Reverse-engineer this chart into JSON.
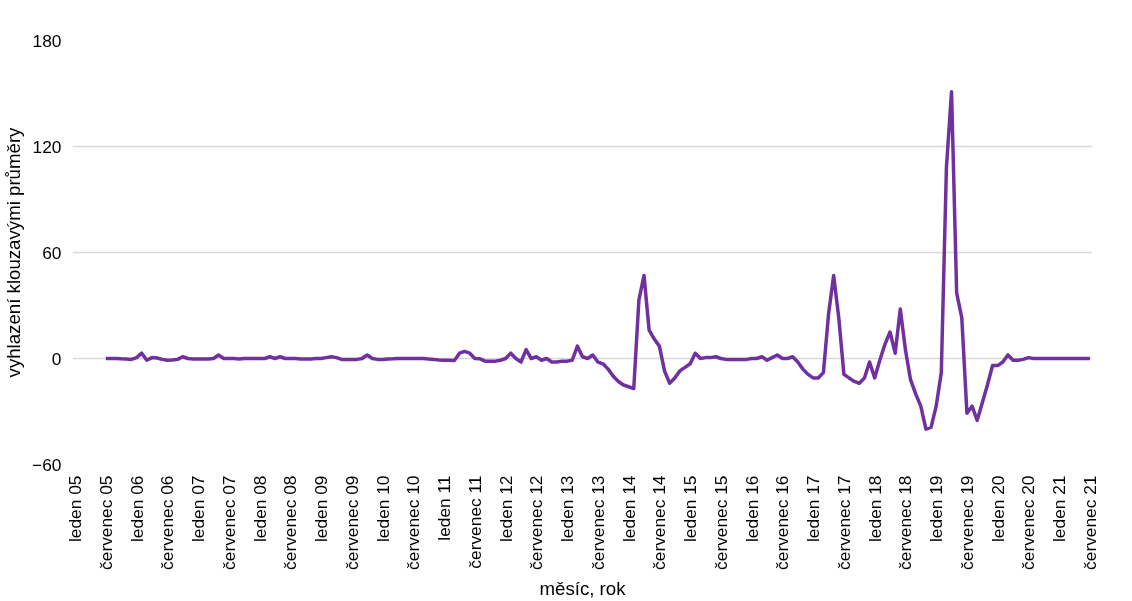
{
  "chart_data": {
    "type": "line",
    "xlabel": "měsíc, rok",
    "ylabel": "vyhlazení klouzavými průměry",
    "categories": [
      "leden 05",
      null,
      null,
      null,
      null,
      null,
      "červenec 05",
      null,
      null,
      null,
      null,
      null,
      "leden 06",
      null,
      null,
      null,
      null,
      null,
      "červenec 06",
      null,
      null,
      null,
      null,
      null,
      "leden 07",
      null,
      null,
      null,
      null,
      null,
      "červenec 07",
      null,
      null,
      null,
      null,
      null,
      "leden 08",
      null,
      null,
      null,
      null,
      null,
      "červenec 08",
      null,
      null,
      null,
      null,
      null,
      "leden 09",
      null,
      null,
      null,
      null,
      null,
      "červenec 09",
      null,
      null,
      null,
      null,
      null,
      "leden 10",
      null,
      null,
      null,
      null,
      null,
      "červenec 10",
      null,
      null,
      null,
      null,
      null,
      "leden 11",
      null,
      null,
      null,
      null,
      null,
      "červenec 11",
      null,
      null,
      null,
      null,
      null,
      "leden 12",
      null,
      null,
      null,
      null,
      null,
      "červenec 12",
      null,
      null,
      null,
      null,
      null,
      "leden 13",
      null,
      null,
      null,
      null,
      null,
      "červenec 13",
      null,
      null,
      null,
      null,
      null,
      "leden 14",
      null,
      null,
      null,
      null,
      null,
      "červenec 14",
      null,
      null,
      null,
      null,
      null,
      "leden 15",
      null,
      null,
      null,
      null,
      null,
      "červenec 15",
      null,
      null,
      null,
      null,
      null,
      "leden 16",
      null,
      null,
      null,
      null,
      null,
      "červenec 16",
      null,
      null,
      null,
      null,
      null,
      "leden 17",
      null,
      null,
      null,
      null,
      null,
      "červenec 17",
      null,
      null,
      null,
      null,
      null,
      "leden 18",
      null,
      null,
      null,
      null,
      null,
      "červenec 18",
      null,
      null,
      null,
      null,
      null,
      "leden 19",
      null,
      null,
      null,
      null,
      null,
      "červenec 19",
      null,
      null,
      null,
      null,
      null,
      "leden 20",
      null,
      null,
      null,
      null,
      null,
      "červenec 20",
      null,
      null,
      null,
      null,
      null,
      "leden 21",
      null,
      null,
      null,
      null,
      null,
      "červenec 21"
    ],
    "series": [
      {
        "color": "#7030a0",
        "values": [
          null,
          null,
          null,
          null,
          null,
          null,
          0,
          0,
          0,
          -0.2,
          -0.3,
          -0.5,
          0.5,
          3,
          -1,
          0.5,
          0.3,
          -0.5,
          -1,
          -0.8,
          -0.5,
          1,
          0,
          -0.3,
          -0.3,
          -0.3,
          -0.3,
          0,
          2,
          0,
          0,
          0,
          -0.3,
          0,
          0,
          0,
          0,
          0,
          1,
          0,
          1,
          0,
          0,
          0,
          -0.3,
          -0.3,
          -0.3,
          0,
          0,
          0.5,
          1,
          0.5,
          -0.5,
          -0.5,
          -0.5,
          -0.5,
          0,
          2,
          0,
          -0.5,
          -0.5,
          -0.3,
          -0.2,
          0,
          0,
          0,
          0,
          0,
          0,
          -0.3,
          -0.5,
          -0.8,
          -1,
          -1,
          -1.2,
          3,
          4,
          3,
          0,
          -0.2,
          -1.5,
          -1.5,
          -1.5,
          -1,
          0,
          3,
          0,
          -2,
          5,
          0,
          1,
          -1,
          0,
          -2,
          -2,
          -1.5,
          -1.5,
          -1,
          7,
          1,
          0,
          2,
          -2,
          -3,
          -6,
          -10,
          -13,
          -15,
          -16,
          -17,
          33,
          47,
          16,
          11,
          7,
          -7,
          -14,
          -11,
          -7,
          -5,
          -3,
          3,
          0,
          0.5,
          0.5,
          1,
          0,
          -0.5,
          -0.5,
          -0.5,
          -0.5,
          -0.5,
          0,
          0,
          1,
          -1,
          0.5,
          2,
          0,
          0,
          1,
          -2,
          -6,
          -9,
          -11,
          -11,
          -8,
          25,
          47,
          23,
          -9,
          -11,
          -13,
          -14,
          -11,
          -2,
          -11,
          -1,
          8,
          15,
          3,
          28,
          5,
          -12,
          -20,
          -27,
          -40,
          -39,
          -27,
          -8,
          108,
          151,
          37,
          23,
          -31,
          -27,
          -35,
          -25,
          -15,
          -4,
          -4,
          -2,
          2,
          -1,
          -1,
          -0.5,
          0.5,
          0,
          0,
          0,
          0,
          0,
          0,
          0,
          0,
          0,
          0,
          0,
          0
        ]
      }
    ],
    "ylim": [
      -60,
      180
    ],
    "yticks": [
      -60,
      0,
      60,
      120,
      180
    ],
    "grid": "y"
  }
}
